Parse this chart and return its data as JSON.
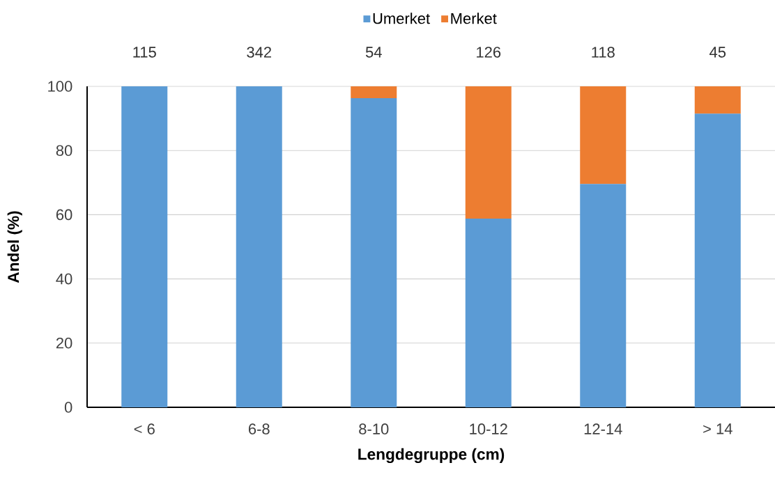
{
  "chart_data": {
    "type": "bar",
    "stacked": true,
    "xlabel": "Lengdegruppe (cm)",
    "ylabel": "Andel (%)",
    "categories": [
      "< 6",
      "6-8",
      "8-10",
      "10-12",
      "12-14",
      "> 14"
    ],
    "series": [
      {
        "name": "Umerket",
        "color": "#5b9bd5",
        "values": [
          100,
          100,
          96.3,
          58.8,
          69.6,
          91.5
        ]
      },
      {
        "name": "Merket",
        "color": "#ed7d31",
        "values": [
          0,
          0,
          3.7,
          41.2,
          30.4,
          8.5
        ]
      }
    ],
    "annotations": [
      "115",
      "342",
      "54",
      "126",
      "118",
      "45"
    ],
    "ylim": [
      0,
      100
    ],
    "yticks": [
      0,
      20,
      40,
      60,
      80,
      100
    ],
    "grid": "y",
    "legend": "top"
  }
}
